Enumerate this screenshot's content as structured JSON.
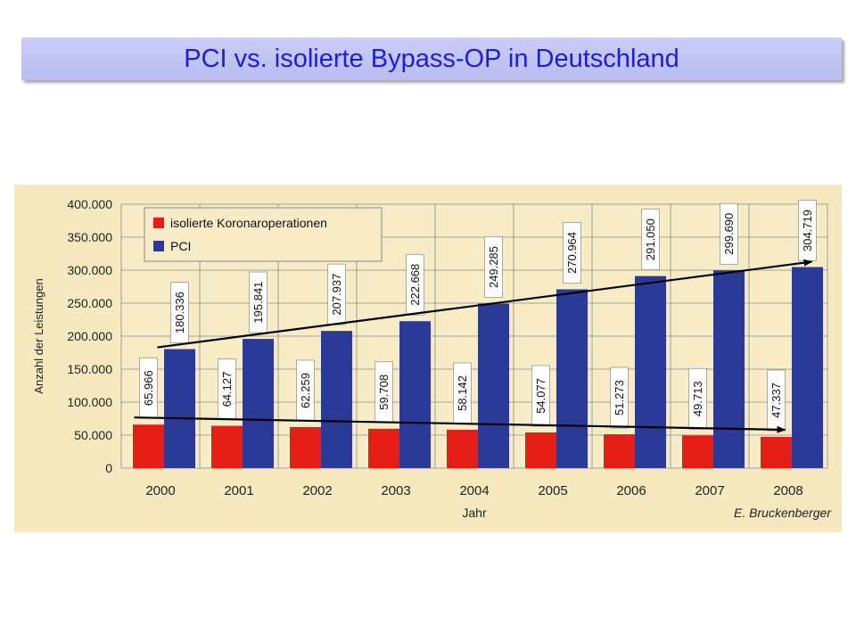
{
  "slide": {
    "title": "PCI vs. isolierte Bypass-OP in Deutschland"
  },
  "colors": {
    "title_text": "#1d1ae6",
    "banner": "#c3c7f4",
    "chart_background": "#f6e9bf",
    "plot_background": "#f7ecc6",
    "series_red": "#e41e16",
    "series_blue": "#2b3a97"
  },
  "chart_data": {
    "type": "bar",
    "categories": [
      "2000",
      "2001",
      "2002",
      "2003",
      "2004",
      "2005",
      "2006",
      "2007",
      "2008"
    ],
    "series": [
      {
        "name": "isolierte Koronaroperationen",
        "color": "#e41e16",
        "values": [
          65966,
          64127,
          62259,
          59708,
          58142,
          54077,
          51273,
          49713,
          47337
        ],
        "labels": [
          "65.966",
          "64.127",
          "62.259",
          "59.708",
          "58.142",
          "54.077",
          "51.273",
          "49.713",
          "47.337"
        ]
      },
      {
        "name": "PCI",
        "color": "#2b3a97",
        "values": [
          180336,
          195841,
          207937,
          222668,
          249285,
          270964,
          291050,
          299690,
          304719
        ],
        "labels": [
          "180.336",
          "195.841",
          "207.937",
          "222.668",
          "249.285",
          "270.964",
          "291.050",
          "299.690",
          "304.719"
        ]
      }
    ],
    "title": "",
    "xlabel": "Jahr",
    "ylabel": "Anzahl der Leistungen",
    "ylim": [
      0,
      400000
    ],
    "yticks": [
      0,
      50000,
      100000,
      150000,
      200000,
      250000,
      300000,
      350000,
      400000
    ],
    "ytick_labels": [
      "0",
      "50.000",
      "100.000",
      "150.000",
      "200.000",
      "250.000",
      "300.000",
      "350.000",
      "400.000"
    ],
    "grid": true,
    "legend_position": "top-left",
    "source_credit": "E. Bruckenberger",
    "trend_arrows": [
      {
        "series": "PCI",
        "from": "2000",
        "to": "2008",
        "direction": "up"
      },
      {
        "series": "isolierte Koronaroperationen",
        "from": "2000",
        "to": "2008",
        "direction": "down"
      }
    ]
  }
}
